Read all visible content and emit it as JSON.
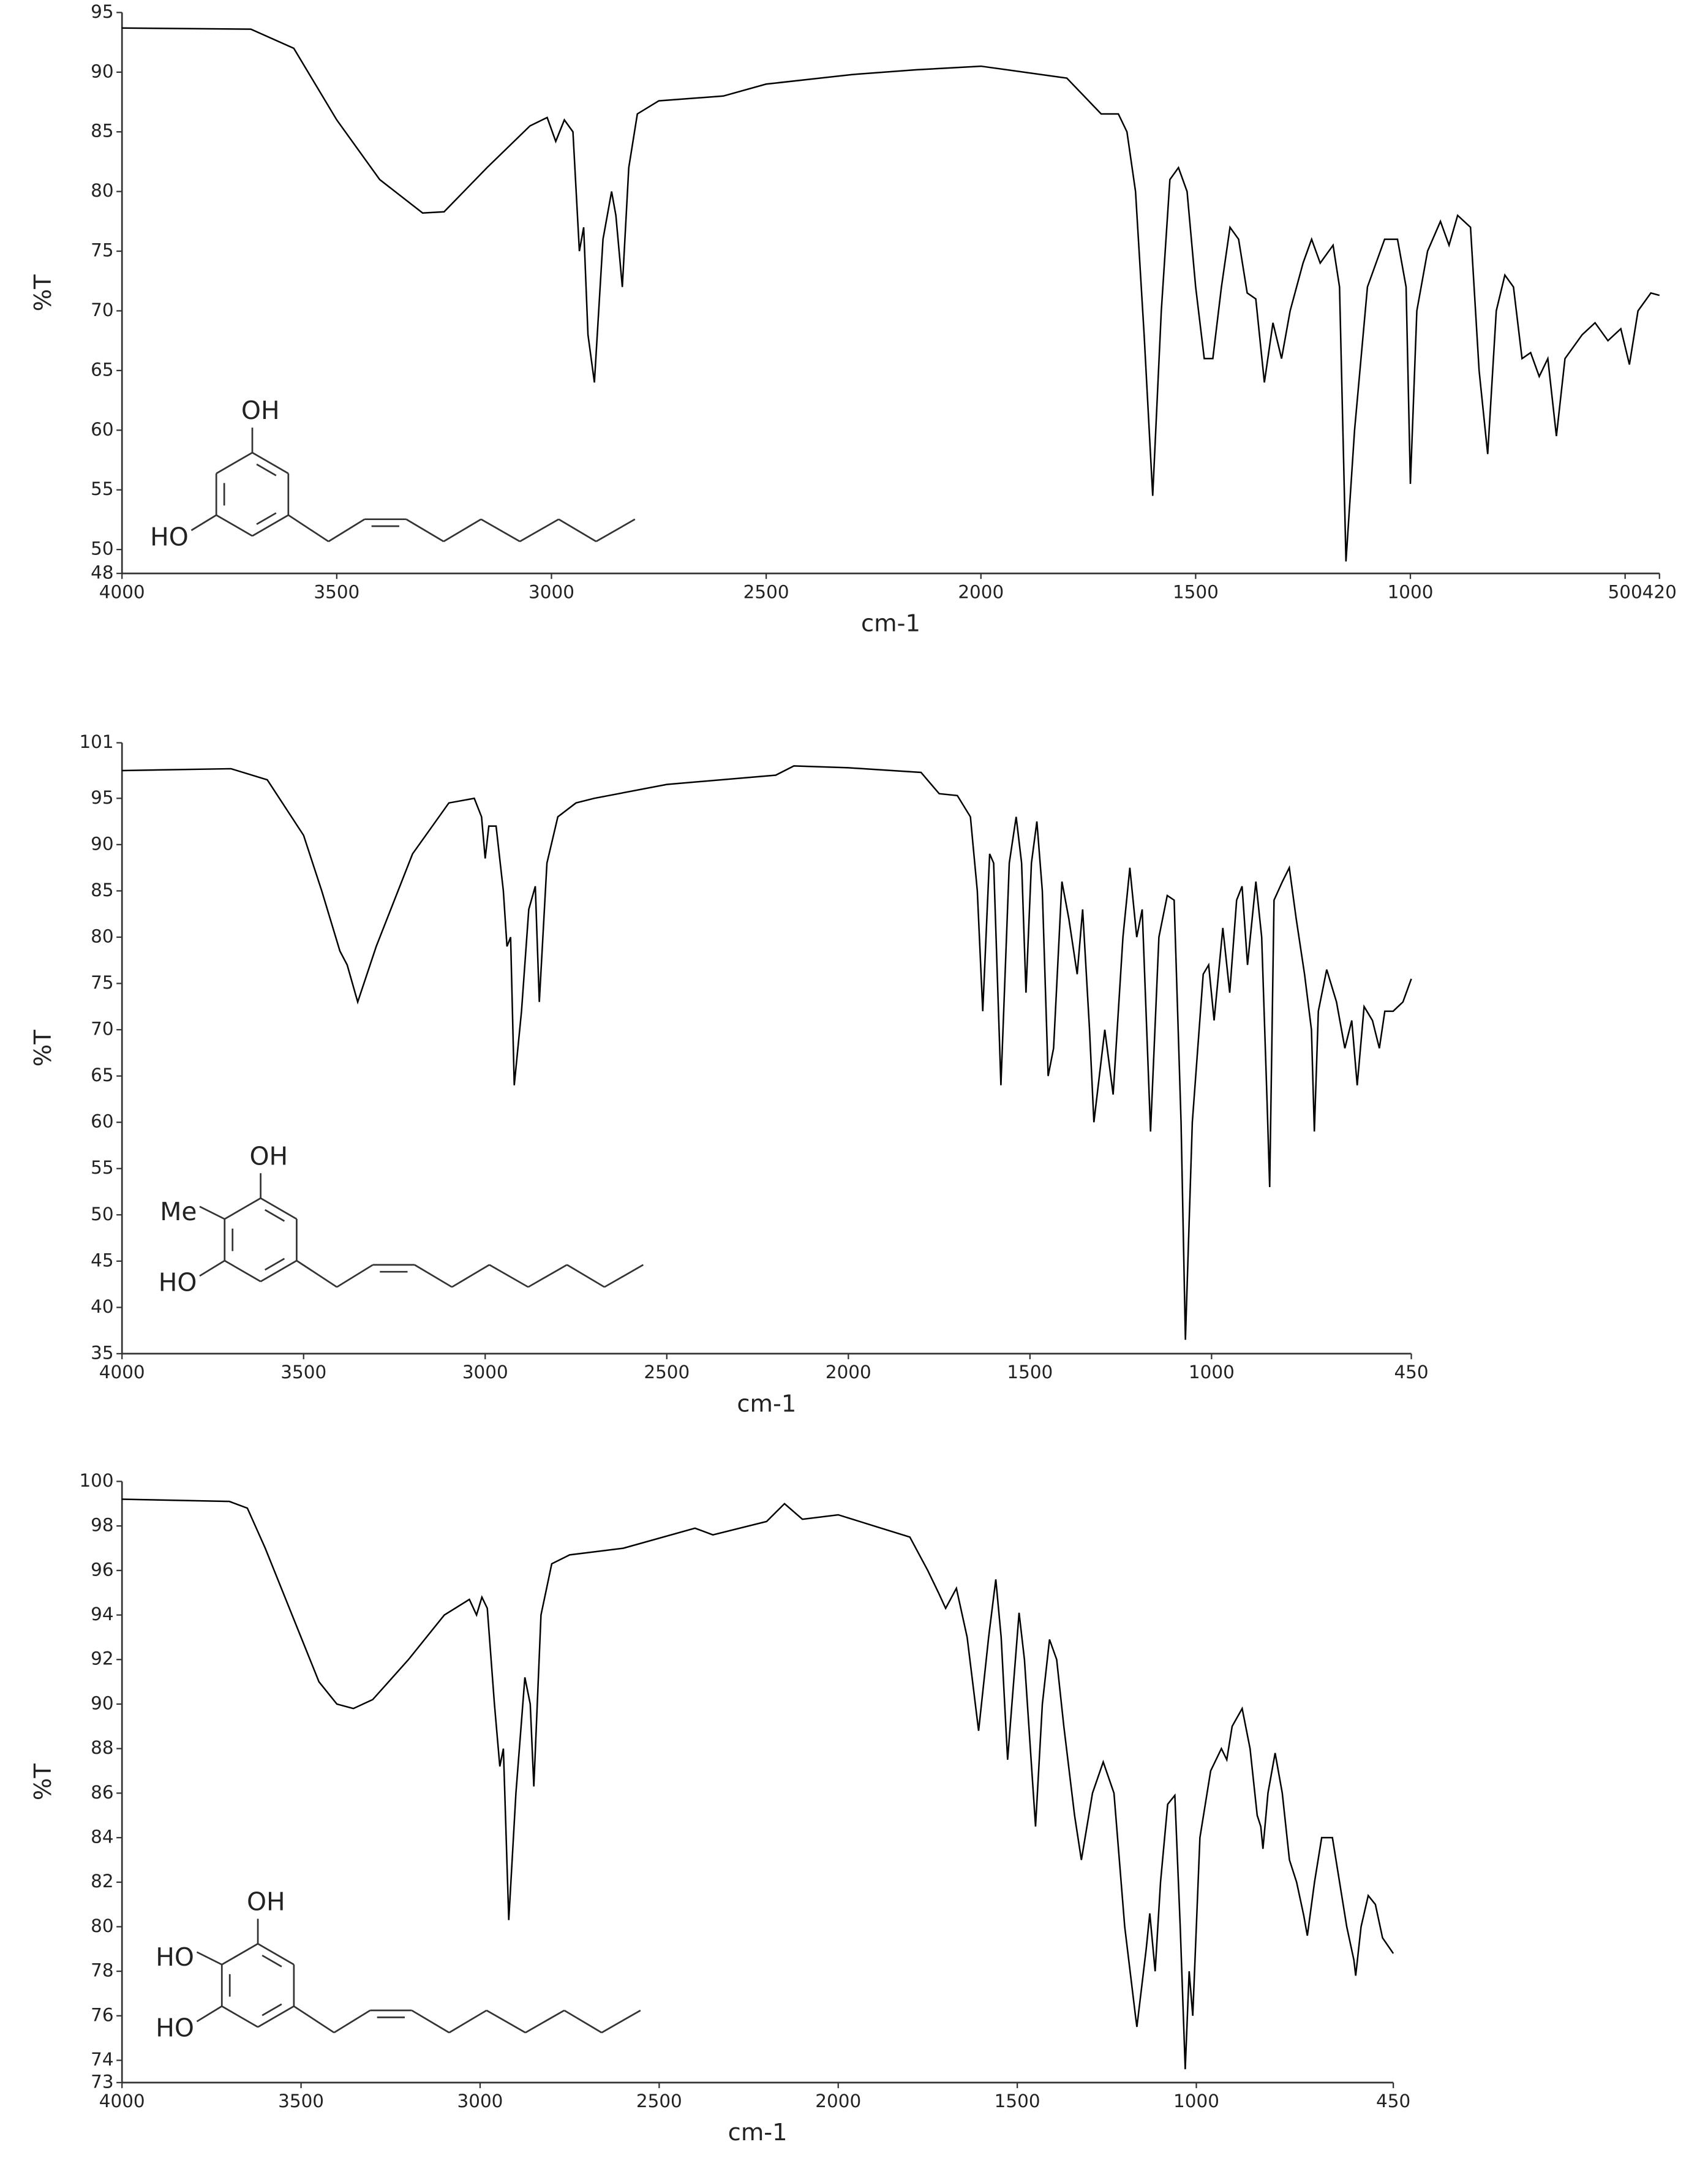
{
  "chart_data": [
    {
      "type": "line",
      "color": "#000000",
      "xlabel": "cm-1",
      "ylabel": "%T",
      "annotations": [
        "OH",
        "HO"
      ],
      "xlim": [
        4000,
        420
      ],
      "ylim": [
        48,
        95
      ],
      "xticks": [
        4000,
        3500,
        3000,
        2500,
        2000,
        1500,
        1000,
        500,
        420
      ],
      "yticks": [
        48,
        50,
        55,
        60,
        65,
        70,
        75,
        80,
        85,
        90,
        95
      ],
      "x": [
        4000,
        3700,
        3600,
        3500,
        3400,
        3300,
        3250,
        3150,
        3050,
        3010,
        2990,
        2970,
        2950,
        2935,
        2925,
        2915,
        2900,
        2880,
        2860,
        2850,
        2835,
        2820,
        2800,
        2750,
        2600,
        2500,
        2300,
        2150,
        2000,
        1800,
        1720,
        1680,
        1660,
        1640,
        1620,
        1600,
        1580,
        1560,
        1540,
        1520,
        1500,
        1480,
        1460,
        1440,
        1420,
        1400,
        1380,
        1360,
        1340,
        1320,
        1300,
        1280,
        1250,
        1230,
        1210,
        1180,
        1165,
        1150,
        1130,
        1100,
        1060,
        1030,
        1010,
        1000,
        985,
        960,
        930,
        910,
        890,
        860,
        840,
        820,
        800,
        780,
        760,
        740,
        720,
        700,
        680,
        660,
        640,
        600,
        570,
        540,
        510,
        490,
        470,
        440,
        420
      ],
      "values": [
        93.7,
        93.6,
        92,
        86,
        81,
        78.2,
        78.3,
        82,
        85.5,
        86.2,
        84.2,
        86,
        85,
        75,
        77,
        68,
        64,
        76,
        80,
        78,
        72,
        82,
        86.5,
        87.6,
        88,
        89,
        89.8,
        90.2,
        90.5,
        89.5,
        86.5,
        86.5,
        85,
        80,
        68,
        54.5,
        70,
        81,
        82,
        80,
        72,
        66,
        66,
        72,
        77,
        76,
        71.5,
        71,
        64,
        69,
        66,
        70,
        74,
        76,
        74,
        75.5,
        72,
        49,
        60,
        72,
        76,
        76,
        72,
        55.5,
        70,
        75,
        77.5,
        75.5,
        78,
        77,
        65,
        58,
        70,
        73,
        72,
        66,
        66.5,
        64.5,
        66,
        59.5,
        66,
        68,
        69,
        67.5,
        68.5,
        65.5,
        70,
        71.5,
        71.3
      ]
    },
    {
      "type": "line",
      "color": "#000000",
      "xlabel": "cm-1",
      "ylabel": "%T",
      "annotations": [
        "OH",
        "Me",
        "HO"
      ],
      "xlim": [
        4000,
        450
      ],
      "ylim": [
        35,
        101
      ],
      "xticks": [
        4000,
        3500,
        3000,
        2500,
        2000,
        1500,
        1000,
        450
      ],
      "yticks": [
        35,
        40,
        45,
        50,
        55,
        60,
        65,
        70,
        75,
        80,
        85,
        90,
        95,
        101
      ],
      "x": [
        4000,
        3700,
        3600,
        3500,
        3450,
        3400,
        3380,
        3351,
        3300,
        3200,
        3100,
        3030,
        3010,
        3000,
        2990,
        2970,
        2950,
        2940,
        2930,
        2920,
        2900,
        2880,
        2862,
        2851,
        2830,
        2800,
        2750,
        2700,
        2500,
        2200,
        2150,
        2000,
        1800,
        1750,
        1700,
        1664,
        1645,
        1630,
        1611,
        1600,
        1580,
        1557,
        1538,
        1523,
        1511,
        1496,
        1481,
        1466,
        1450,
        1435,
        1412,
        1393,
        1370,
        1355,
        1336,
        1324,
        1309,
        1294,
        1271,
        1244,
        1225,
        1206,
        1191,
        1168,
        1145,
        1122,
        1103,
        1084,
        1072,
        1053,
        1023,
        1008,
        993,
        969,
        950,
        931,
        916,
        901,
        878,
        862,
        847,
        840,
        828,
        805,
        786,
        767,
        744,
        725,
        717,
        706,
        683,
        656,
        633,
        614,
        599,
        580,
        557,
        538,
        523,
        500,
        473,
        450
      ],
      "values": [
        98,
        98.2,
        97,
        91,
        85,
        78.5,
        77,
        73,
        79,
        89,
        94.5,
        95,
        93,
        88.5,
        92,
        92,
        85,
        79,
        80,
        64,
        72,
        83,
        85.5,
        73,
        88,
        93,
        94.5,
        95,
        96.5,
        97.5,
        98.5,
        98.3,
        97.8,
        95.5,
        95.3,
        93,
        85,
        72,
        89,
        88,
        64,
        88,
        93,
        88,
        74,
        88,
        92.5,
        85,
        65,
        68,
        86,
        82,
        76,
        83,
        70,
        60,
        65,
        70,
        63,
        80,
        87.5,
        80,
        83,
        59,
        80,
        84.5,
        84,
        60,
        36.5,
        60,
        76,
        77,
        71,
        81,
        74,
        84,
        85.5,
        77,
        86,
        80,
        62,
        53,
        84,
        86,
        87.5,
        82,
        76,
        70,
        59,
        72,
        76.5,
        73,
        68,
        71,
        64,
        72.5,
        71,
        68,
        72,
        72,
        73,
        75.5
      ]
    },
    {
      "type": "line",
      "color": "#000000",
      "xlabel": "cm-1",
      "ylabel": "%T",
      "annotations": [
        "OH",
        "HO",
        "HO"
      ],
      "xlim": [
        4000,
        450
      ],
      "ylim": [
        73,
        100
      ],
      "xticks": [
        4000,
        3500,
        3000,
        2500,
        2000,
        1500,
        1000,
        450
      ],
      "yticks": [
        73,
        74,
        76,
        78,
        80,
        82,
        84,
        86,
        88,
        90,
        92,
        94,
        96,
        98,
        100
      ],
      "x": [
        4000,
        3700,
        3650,
        3600,
        3500,
        3450,
        3400,
        3354,
        3300,
        3200,
        3100,
        3030,
        3010,
        2995,
        2980,
        2960,
        2945,
        2935,
        2920,
        2900,
        2875,
        2860,
        2850,
        2830,
        2800,
        2750,
        2600,
        2400,
        2350,
        2200,
        2150,
        2100,
        2000,
        1900,
        1800,
        1750,
        1720,
        1700,
        1670,
        1640,
        1608,
        1580,
        1560,
        1545,
        1527,
        1515,
        1495,
        1480,
        1449,
        1430,
        1410,
        1390,
        1370,
        1340,
        1321,
        1290,
        1260,
        1230,
        1200,
        1170,
        1166,
        1140,
        1130,
        1115,
        1100,
        1080,
        1060,
        1045,
        1031,
        1020,
        1010,
        990,
        960,
        930,
        915,
        900,
        872,
        850,
        830,
        820,
        814,
        800,
        780,
        760,
        740,
        720,
        700,
        690,
        670,
        650,
        620,
        600,
        580,
        560,
        555,
        540,
        520,
        500,
        480,
        450
      ],
      "values": [
        99.2,
        99.1,
        98.8,
        97,
        93,
        91,
        90,
        89.8,
        90.2,
        92,
        94,
        94.7,
        94,
        94.8,
        94.3,
        90,
        87.2,
        88,
        80.3,
        86,
        91.2,
        90,
        86.3,
        94,
        96.3,
        96.7,
        97,
        97.9,
        97.6,
        98.2,
        99,
        98.3,
        98.5,
        98,
        97.5,
        96,
        95,
        94.3,
        95.2,
        93,
        88.8,
        93,
        95.6,
        93,
        87.5,
        90,
        94.1,
        92,
        84.5,
        90,
        92.9,
        92,
        89,
        85,
        83,
        86,
        87.4,
        86,
        80,
        76,
        75.5,
        79,
        80.6,
        78,
        82,
        85.5,
        85.9,
        80,
        73.6,
        78,
        76,
        84,
        87,
        88,
        87.5,
        89,
        89.8,
        88,
        85,
        84.5,
        83.5,
        86,
        87.8,
        86,
        83,
        82,
        80.5,
        79.6,
        82,
        84,
        84,
        82,
        80,
        78.5,
        77.8,
        80,
        81.4,
        81,
        79.5,
        78.8
      ]
    }
  ]
}
